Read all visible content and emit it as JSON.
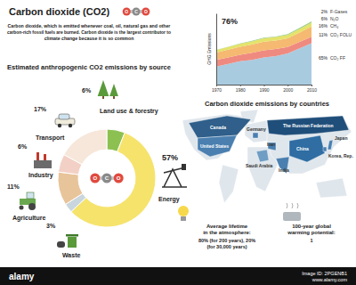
{
  "header": {
    "title": "Carbon dioxide (CO2)",
    "molecule": [
      "O",
      "C",
      "O"
    ],
    "description": [
      "Carbon dioxide, which is emitted whenever coal, oil, natural gas and other",
      "carbon-rich fossil fuels are burned. Carbon dioxide is the largest contributor to",
      "climate change because it is so common"
    ]
  },
  "chart_data": [
    {
      "type": "pie",
      "title": "Estimated anthropogenic CO2 emissions by source",
      "categories": [
        "Land use & forestry",
        "Energy",
        "Waste",
        "Agriculture",
        "Industry",
        "Transport"
      ],
      "values": [
        6,
        57,
        3,
        11,
        6,
        17
      ],
      "value_labels": [
        "6%",
        "57%",
        "3%",
        "11%",
        "6%",
        "17%"
      ],
      "colors": [
        "#8cc152",
        "#f6e36c",
        "#c9d6dd",
        "#e8c49a",
        "#f3d0c5",
        "#f6e7da"
      ],
      "data_labels": true
    },
    {
      "type": "area",
      "stacked": true,
      "y_label": "GHG Emissions",
      "x": [
        1970,
        1975,
        1980,
        1985,
        1990,
        1995,
        2000,
        2005,
        2010
      ],
      "xlim": [
        1970,
        2010
      ],
      "xticks": [
        1970,
        1980,
        1990,
        2000,
        2010
      ],
      "ylim": [
        0,
        55
      ],
      "yticks": [],
      "tick_labels": "x",
      "legend": "right",
      "series": [
        {
          "name": "CO₂ FF",
          "color": "#a9cbe0",
          "values": [
            14,
            16,
            18,
            19,
            21,
            22,
            24,
            28,
            32
          ]
        },
        {
          "name": "CO₂ FOLU",
          "color": "#ef8a80",
          "values": [
            5,
            5,
            5,
            5.5,
            5.5,
            5.5,
            5,
            5,
            5
          ]
        },
        {
          "name": "CH₄",
          "color": "#f5b971",
          "values": [
            5.8,
            6,
            6.3,
            6.5,
            6.7,
            6.6,
            6.7,
            7.2,
            7.8
          ]
        },
        {
          "name": "N₂O",
          "color": "#e4e36a",
          "values": [
            1.8,
            2,
            2.2,
            2.4,
            2.5,
            2.6,
            2.6,
            2.8,
            3
          ]
        },
        {
          "name": "F-Gases",
          "color": "#9fcf86",
          "values": [
            0.2,
            0.2,
            0.3,
            0.4,
            0.5,
            0.5,
            0.7,
            0.8,
            1
          ]
        }
      ],
      "annotations": [
        "76%",
        "65%",
        "11%",
        "16%",
        "6%",
        "2%"
      ]
    }
  ],
  "map": {
    "title": "Carbon dioxide emissions by countries",
    "countries": [
      "Canada",
      "Germany",
      "The Russian Federation",
      "United States",
      "Saudi Arabia",
      "Iran",
      "India",
      "China",
      "Japan",
      "Korea, Rep."
    ]
  },
  "facts": [
    {
      "title": [
        "Average lifetime",
        "in the atmosphere:"
      ],
      "lines": [
        "80% (for 200 years), 20%",
        "(for 30,000 years)"
      ]
    },
    {
      "title": [
        "100-year global",
        "warming potential:"
      ],
      "lines": [
        "1"
      ]
    }
  ],
  "footer": {
    "brand": "alamy",
    "id": "Image ID: 2PGENB1",
    "url": "www.alamy.com"
  }
}
